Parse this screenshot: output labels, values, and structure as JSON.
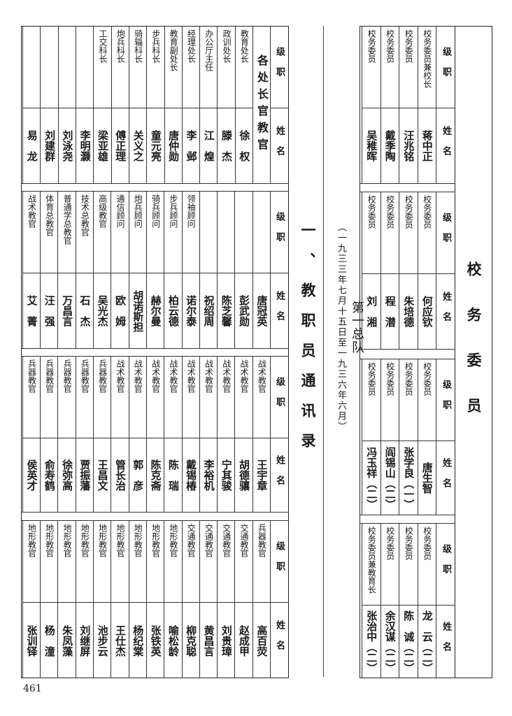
{
  "section_title": "一、教职员通讯录",
  "unit": {
    "name": "第一总队",
    "period": "（一九三三年七月十五日至一九三六年六月）"
  },
  "labels": {
    "rank": "级职",
    "name": "姓名"
  },
  "page_number": "461",
  "committee": {
    "title": "校务委员",
    "blocks": [
      [
        {
          "rank": "校务委员兼校长",
          "name": "蒋中正"
        },
        {
          "rank": "校务委员",
          "name": "汪兆铭"
        },
        {
          "rank": "校务委员",
          "name": "戴季陶"
        },
        {
          "rank": "校务委员",
          "name": "吴稚晖"
        }
      ],
      [
        {
          "rank": "校务委员",
          "name": "何应钦"
        },
        {
          "rank": "校务委员",
          "name": "朱培德"
        },
        {
          "rank": "校务委员",
          "name": "程　潜"
        },
        {
          "rank": "校务委员",
          "name": "刘　湘"
        }
      ],
      [
        {
          "rank": "校务委员",
          "name": "唐生智"
        },
        {
          "rank": "校务委员",
          "name": "张学良（一）"
        },
        {
          "rank": "校务委员",
          "name": "阎锡山（二）"
        },
        {
          "rank": "校务委员",
          "name": "冯玉祥（二）"
        }
      ],
      [
        {
          "rank": "校务委员",
          "name": "龙　云（二）"
        },
        {
          "rank": "校务委员",
          "name": "陈　诚（二）"
        },
        {
          "rank": "校务委员",
          "name": "余汉谋（二）"
        },
        {
          "rank": "校务委员兼教育长",
          "name": "张治中（二）"
        }
      ]
    ]
  },
  "staff": {
    "group_heading": "各处长官教官",
    "blocks": [
      [
        {
          "rank": "教育处长",
          "name": "徐　权"
        },
        {
          "rank": "政训处长",
          "name": "滕　杰"
        },
        {
          "rank": "办公厅主任",
          "name": "江　煌"
        },
        {
          "rank": "经理处长",
          "name": "李　邺"
        },
        {
          "rank": "教育副处长",
          "name": "唐仲勋"
        },
        {
          "rank": "步兵科长",
          "name": "童元亮"
        },
        {
          "rank": "骑辎科长",
          "name": "关义之"
        },
        {
          "rank": "炮兵科长",
          "name": "傅正理"
        },
        {
          "rank": "工交科长",
          "name": "梁亚雄"
        },
        {
          "rank": "",
          "name": "李明灏"
        },
        {
          "rank": "",
          "name": "刘泳尧"
        },
        {
          "rank": "",
          "name": "刘建群"
        },
        {
          "rank": "",
          "name": "易　龙"
        }
      ],
      [
        {
          "rank": "",
          "name": "唐冠英"
        },
        {
          "rank": "",
          "name": "彭武勋"
        },
        {
          "rank": "",
          "name": "陈芝馨"
        },
        {
          "rank": "",
          "name": "祝绍周"
        },
        {
          "rank": "领袖顾问",
          "name": "诺尔泰"
        },
        {
          "rank": "步兵顾问",
          "name": "柏云德"
        },
        {
          "rank": "骑兵顾问",
          "name": "赫尔曼"
        },
        {
          "rank": "炮兵顾问",
          "name": "胡诺斯担"
        },
        {
          "rank": "通信顾问",
          "name": "欧　姆"
        },
        {
          "rank": "高级教官",
          "name": "吴光杰"
        },
        {
          "rank": "技术总教官",
          "name": "石　杰"
        },
        {
          "rank": "普通学总教官",
          "name": "万昌言"
        },
        {
          "rank": "体育总教官",
          "name": "汪　强"
        },
        {
          "rank": "战术教官",
          "name": "艾　菁"
        }
      ],
      [
        {
          "rank": "战术教官",
          "name": "王宇章"
        },
        {
          "rank": "战术教官",
          "name": "胡德骧"
        },
        {
          "rank": "战术教官",
          "name": "宁其骏"
        },
        {
          "rank": "战术教官",
          "name": "李裕机"
        },
        {
          "rank": "战术教官",
          "name": "戴锡椿"
        },
        {
          "rank": "战术教官",
          "name": "陈　瑞"
        },
        {
          "rank": "战术教官",
          "name": "陈克斋"
        },
        {
          "rank": "战术教官",
          "name": "郭　彦"
        },
        {
          "rank": "战术教官",
          "name": "管长治"
        },
        {
          "rank": "兵器教官",
          "name": "王昌文"
        },
        {
          "rank": "兵器教官",
          "name": "贾振藩"
        },
        {
          "rank": "兵器教官",
          "name": "徐弥高"
        },
        {
          "rank": "兵器教官",
          "name": "俞寿鹤"
        },
        {
          "rank": "兵器教官",
          "name": "侯英才"
        }
      ],
      [
        {
          "rank": "兵器教官",
          "name": "高百荧"
        },
        {
          "rank": "交通教官",
          "name": "赵成甲"
        },
        {
          "rank": "交通教官",
          "name": "刘贵璋"
        },
        {
          "rank": "交通教官",
          "name": "黄昌言"
        },
        {
          "rank": "交通教官",
          "name": "柳克聪"
        },
        {
          "rank": "地形教官",
          "name": "喻松龄"
        },
        {
          "rank": "地形教官",
          "name": "张铁英"
        },
        {
          "rank": "地形教官",
          "name": "杨纪棠"
        },
        {
          "rank": "地形教官",
          "name": "王仕杰"
        },
        {
          "rank": "地形教官",
          "name": "池步云"
        },
        {
          "rank": "地形教官",
          "name": "刘继屏"
        },
        {
          "rank": "地形教官",
          "name": "朱凤藻"
        },
        {
          "rank": "地形教官",
          "name": "杨　潼"
        },
        {
          "rank": "地形教官",
          "name": "张训铎"
        }
      ]
    ]
  }
}
